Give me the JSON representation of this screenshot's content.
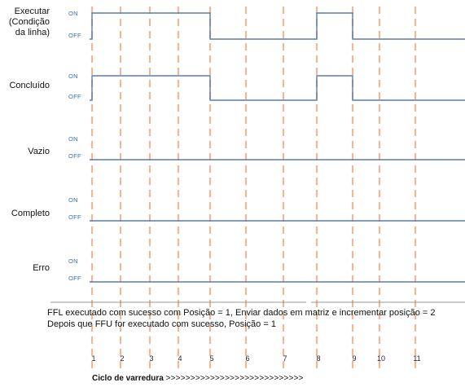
{
  "signals": [
    {
      "id": "executar",
      "label_lines": [
        "Executar",
        "(Condição",
        "da linha)"
      ],
      "on_label": "ON",
      "off_label": "OFF",
      "high_intervals": [
        [
          1,
          5
        ],
        [
          8,
          9
        ]
      ]
    },
    {
      "id": "concluido",
      "label_lines": [
        "Concluído"
      ],
      "on_label": "ON",
      "off_label": "OFF",
      "high_intervals": [
        [
          1,
          5
        ],
        [
          8,
          9
        ]
      ]
    },
    {
      "id": "vazio",
      "label_lines": [
        "Vazio"
      ],
      "on_label": "ON",
      "off_label": "OFF",
      "high_intervals": []
    },
    {
      "id": "completo",
      "label_lines": [
        "Completo"
      ],
      "on_label": "ON",
      "off_label": "OFF",
      "high_intervals": []
    },
    {
      "id": "erro",
      "label_lines": [
        "Erro"
      ],
      "on_label": "ON",
      "off_label": "OFF",
      "high_intervals": []
    }
  ],
  "scan_ticks": [
    "1",
    "2",
    "3",
    "4",
    "5",
    "6",
    "7",
    "8",
    "9",
    "10",
    "11"
  ],
  "notes": {
    "line1": "FFL executado com sucesso com Posição = 1, Enviar dados em matriz e incrementar posição = 2",
    "line2": "Depois que FFU for executado com sucesso, Posição = 1"
  },
  "footer": {
    "label": "Ciclo de varredura",
    "arrows": ">>>>>>>>>>>>>>>>>>>>>>>>>>>>"
  },
  "colors": {
    "signal_line": "#5a7ea6",
    "gridline": "#f0b898",
    "level_label": "#3a6fb0"
  }
}
